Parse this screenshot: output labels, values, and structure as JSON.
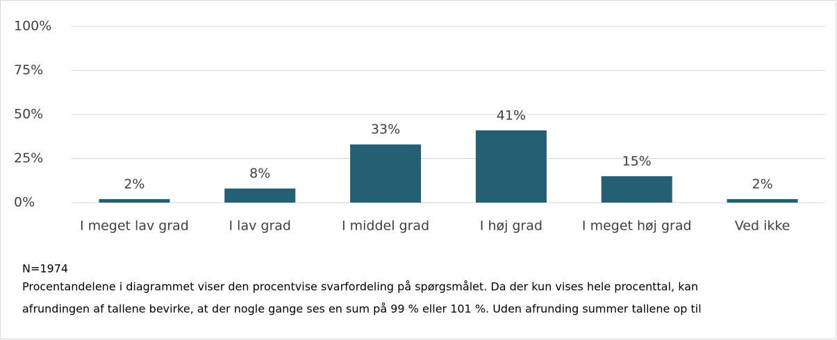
{
  "chart_data": {
    "type": "bar",
    "categories": [
      "I meget lav grad",
      "I lav grad",
      "I middel grad",
      "I høj grad",
      "I meget høj grad",
      "Ved ikke"
    ],
    "values": [
      2,
      8,
      33,
      41,
      15,
      2
    ],
    "value_labels": [
      "2%",
      "8%",
      "33%",
      "41%",
      "15%",
      "2%"
    ],
    "color": "#245f73",
    "ylim": [
      0,
      100
    ],
    "yticks": [
      {
        "value": 0,
        "label": "0%"
      },
      {
        "value": 25,
        "label": "25%"
      },
      {
        "value": 50,
        "label": "50%"
      },
      {
        "value": 75,
        "label": "75%"
      },
      {
        "value": 100,
        "label": "100%"
      }
    ],
    "grid": true,
    "notes": [
      "N=1974",
      "Procentandelene i diagrammet viser den procentvise svarfordeling på spørgsmålet. Da der kun vises hele procenttal, kan",
      "afrundingen af tallene bevirke, at der nogle gange ses en sum på 99 % eller 101 %. Uden afrunding summer tallene op til"
    ]
  }
}
